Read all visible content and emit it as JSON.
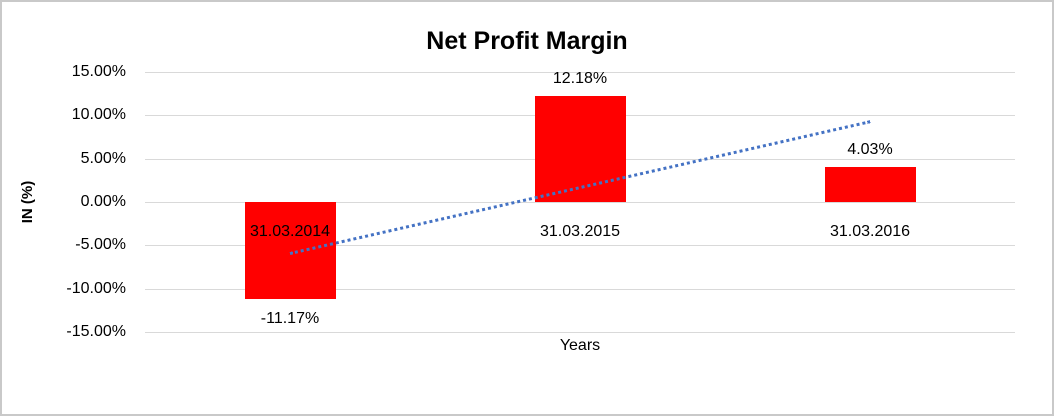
{
  "chart_data": {
    "type": "bar",
    "title": "Net Profit Margin",
    "categories": [
      "31.03.2014",
      "31.03.2015",
      "31.03.2016"
    ],
    "values": [
      -11.17,
      12.18,
      4.03
    ],
    "data_labels": [
      "-11.17%",
      "12.18%",
      "4.03%"
    ],
    "xlabel": "Years",
    "ylabel": "IN (%)",
    "ylim": [
      -15,
      15
    ],
    "ytick_step": 5,
    "ytick_labels": [
      "15.00%",
      "10.00%",
      "5.00%",
      "0.00%",
      "-5.00%",
      "-10.00%",
      "-15.00%"
    ],
    "grid": true,
    "legend": "none",
    "bar_color": "#ff0000",
    "trendline": {
      "type": "linear",
      "style": "dotted",
      "color": "#4472c4"
    },
    "gridline_color": "#d9d9d9",
    "text_color": "#000000",
    "frame_color": "#c9c9c9"
  }
}
